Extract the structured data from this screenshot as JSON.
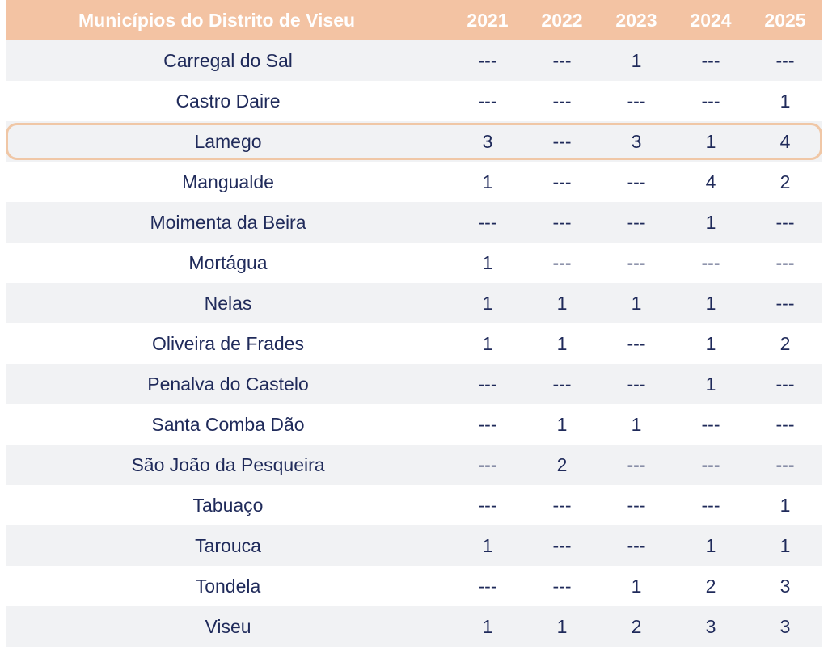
{
  "table": {
    "header": {
      "name": "Municípios do Distrito de Viseu",
      "years": [
        "2021",
        "2022",
        "2023",
        "2024",
        "2025"
      ]
    },
    "rows": [
      {
        "name": "Carregal do Sal",
        "values": [
          "---",
          "---",
          "1",
          "---",
          "---"
        ]
      },
      {
        "name": "Castro Daire",
        "values": [
          "---",
          "---",
          "---",
          "---",
          "1"
        ]
      },
      {
        "name": "Lamego",
        "values": [
          "3",
          "---",
          "3",
          "1",
          "4"
        ],
        "highlighted": true
      },
      {
        "name": "Mangualde",
        "values": [
          "1",
          "---",
          "---",
          "4",
          "2"
        ]
      },
      {
        "name": "Moimenta da Beira",
        "values": [
          "---",
          "---",
          "---",
          "1",
          "---"
        ]
      },
      {
        "name": "Mortágua",
        "values": [
          "1",
          "---",
          "---",
          "---",
          "---"
        ]
      },
      {
        "name": "Nelas",
        "values": [
          "1",
          "1",
          "1",
          "1",
          "---"
        ]
      },
      {
        "name": "Oliveira de Frades",
        "values": [
          "1",
          "1",
          "---",
          "1",
          "2"
        ]
      },
      {
        "name": "Penalva do Castelo",
        "values": [
          "---",
          "---",
          "---",
          "1",
          "---"
        ]
      },
      {
        "name": "Santa Comba Dão",
        "values": [
          "---",
          "1",
          "1",
          "---",
          "---"
        ]
      },
      {
        "name": "São João da Pesqueira",
        "values": [
          "---",
          "2",
          "---",
          "---",
          "---"
        ]
      },
      {
        "name": "Tabuaço",
        "values": [
          "---",
          "---",
          "---",
          "---",
          "1"
        ]
      },
      {
        "name": "Tarouca",
        "values": [
          "1",
          "---",
          "---",
          "1",
          "1"
        ]
      },
      {
        "name": "Tondela",
        "values": [
          "---",
          "---",
          "1",
          "2",
          "3"
        ]
      },
      {
        "name": "Viseu",
        "values": [
          "1",
          "1",
          "2",
          "3",
          "3"
        ]
      }
    ]
  },
  "colors": {
    "header_bg": "#f3c3a3",
    "header_text": "#ffffff",
    "row_shade": "#f1f2f4",
    "body_text": "#1f2a5a",
    "highlight_border": "#f0c7a6"
  }
}
